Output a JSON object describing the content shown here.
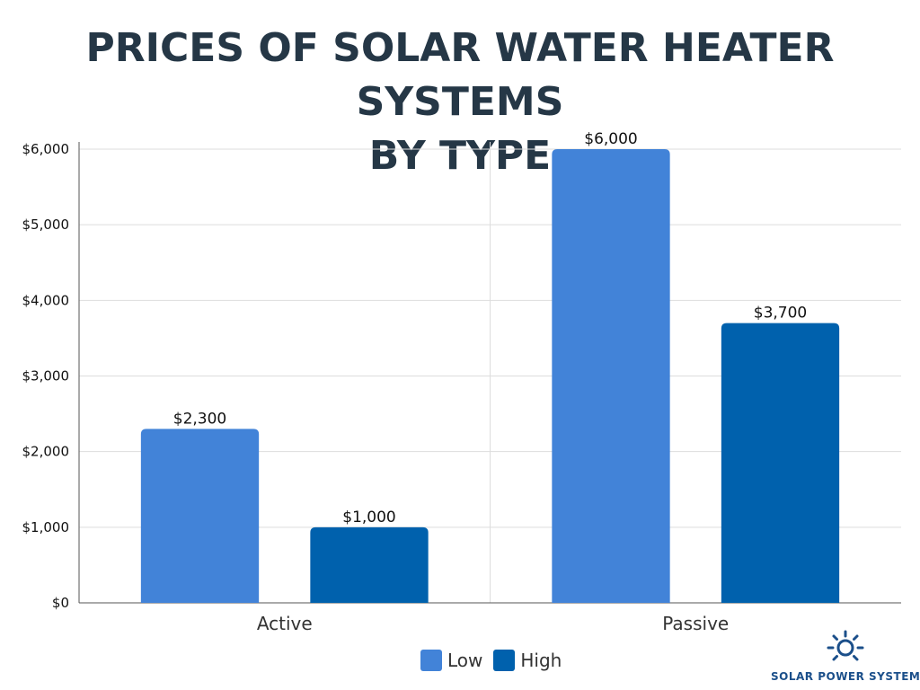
{
  "title_line1": "PRICES OF SOLAR WATER HEATER SYSTEMS",
  "title_line2": "BY TYPE",
  "chart_data": {
    "type": "bar",
    "title": "PRICES OF SOLAR WATER HEATER SYSTEMS BY TYPE",
    "categories": [
      "Active",
      "Passive"
    ],
    "series": [
      {
        "name": "Low",
        "color": "#4283d8",
        "values": [
          2300,
          6000
        ],
        "labels": [
          "$2,300",
          "$6,000"
        ]
      },
      {
        "name": "High",
        "color": "#0061ad",
        "values": [
          1000,
          3700
        ],
        "labels": [
          "$1,000",
          "$3,700"
        ]
      }
    ],
    "ylim": [
      0,
      6000
    ],
    "yticks": [
      0,
      1000,
      2000,
      3000,
      4000,
      5000,
      6000
    ],
    "ytick_labels": [
      "$0",
      "$1,000",
      "$2,000",
      "$3,000",
      "$4,000",
      "$5,000",
      "$6,000"
    ],
    "xlabel": "",
    "ylabel": "",
    "grid": true,
    "legend": "bottom-center"
  },
  "legend": {
    "low": "Low",
    "high": "High"
  },
  "brand": {
    "name": "SOLAR POWER SYSTEMS",
    "icon": "sun-icon",
    "color": "#1b4f8a"
  }
}
